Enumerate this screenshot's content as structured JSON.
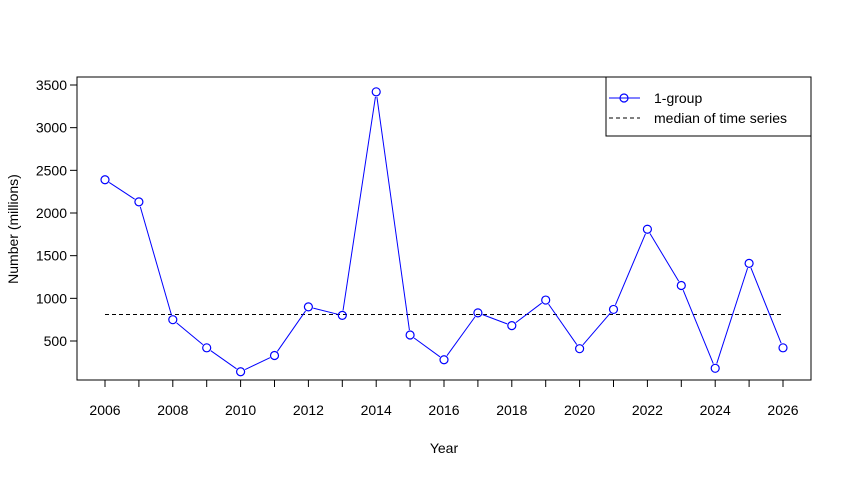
{
  "chart_data": {
    "type": "line",
    "xlabel": "Year",
    "ylabel": "Number (millions)",
    "xlim": [
      2006,
      2026
    ],
    "ylim": [
      120,
      3500
    ],
    "x_ticks": [
      2006,
      2008,
      2010,
      2012,
      2014,
      2016,
      2018,
      2020,
      2022,
      2024,
      2026
    ],
    "y_ticks": [
      500,
      1000,
      1500,
      2000,
      2500,
      3000,
      3500
    ],
    "grid": false,
    "legend_position": "top-right",
    "series": [
      {
        "name": "1-group",
        "color": "#0000ff",
        "marker": "open-circle",
        "x": [
          2006,
          2007,
          2008,
          2009,
          2010,
          2011,
          2012,
          2013,
          2014,
          2015,
          2016,
          2017,
          2018,
          2019,
          2020,
          2021,
          2022,
          2023,
          2024,
          2025,
          2026
        ],
        "y": [
          2390,
          2130,
          750,
          420,
          140,
          330,
          900,
          800,
          3420,
          570,
          280,
          830,
          680,
          980,
          410,
          870,
          1810,
          1150,
          180,
          1410,
          420
        ]
      },
      {
        "name": "median of time series",
        "color": "#000000",
        "style": "dashed",
        "x": [
          2006,
          2026
        ],
        "y": [
          810,
          810
        ]
      }
    ]
  }
}
